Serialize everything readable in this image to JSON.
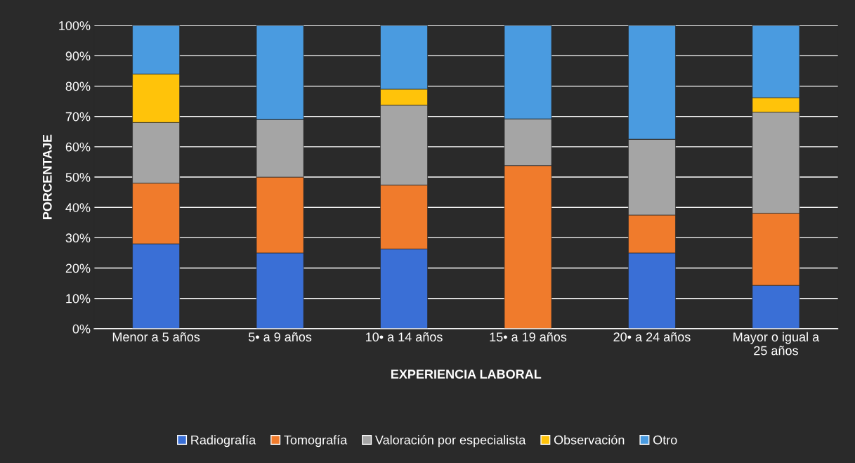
{
  "chart_data": {
    "type": "bar",
    "stacked": true,
    "xlabel": "EXPERIENCIA LABORAL",
    "ylabel": "PORCENTAJE",
    "categories": [
      "Menor a 5 años",
      "5• a 9 años",
      "10• a 14 años",
      "15• a 19 años",
      "20• a 24 años",
      "Mayor o igual a\n25 años"
    ],
    "series": [
      {
        "name": "Radiografía",
        "color": "#3a6fd6",
        "values": [
          28,
          25,
          26.3,
          0,
          25,
          14.3
        ]
      },
      {
        "name": "Tomografía",
        "color": "#f07b2c",
        "values": [
          20,
          25,
          21.1,
          53.8,
          12.5,
          23.8
        ]
      },
      {
        "name": "Valoración por especialista",
        "color": "#a5a5a5",
        "values": [
          20,
          19,
          26.3,
          15.4,
          25,
          33.3
        ]
      },
      {
        "name": "Observación",
        "color": "#ffc30a",
        "values": [
          16,
          0,
          5.3,
          0,
          0,
          4.8
        ]
      },
      {
        "name": "Otro",
        "color": "#4a9be0",
        "values": [
          16,
          31,
          21,
          30.8,
          37.5,
          23.8
        ]
      }
    ],
    "ylim": [
      0,
      100
    ],
    "yticks": [
      {
        "value": 0,
        "label": "0%"
      },
      {
        "value": 10,
        "label": "10%"
      },
      {
        "value": 20,
        "label": "20%"
      },
      {
        "value": 30,
        "label": "30%"
      },
      {
        "value": 40,
        "label": "40%"
      },
      {
        "value": 50,
        "label": "50%"
      },
      {
        "value": 60,
        "label": "60%"
      },
      {
        "value": 70,
        "label": "70%"
      },
      {
        "value": 80,
        "label": "80%"
      },
      {
        "value": 90,
        "label": "90%"
      },
      {
        "value": 100,
        "label": "100%"
      }
    ],
    "grid": "y",
    "legend": "bottom"
  }
}
